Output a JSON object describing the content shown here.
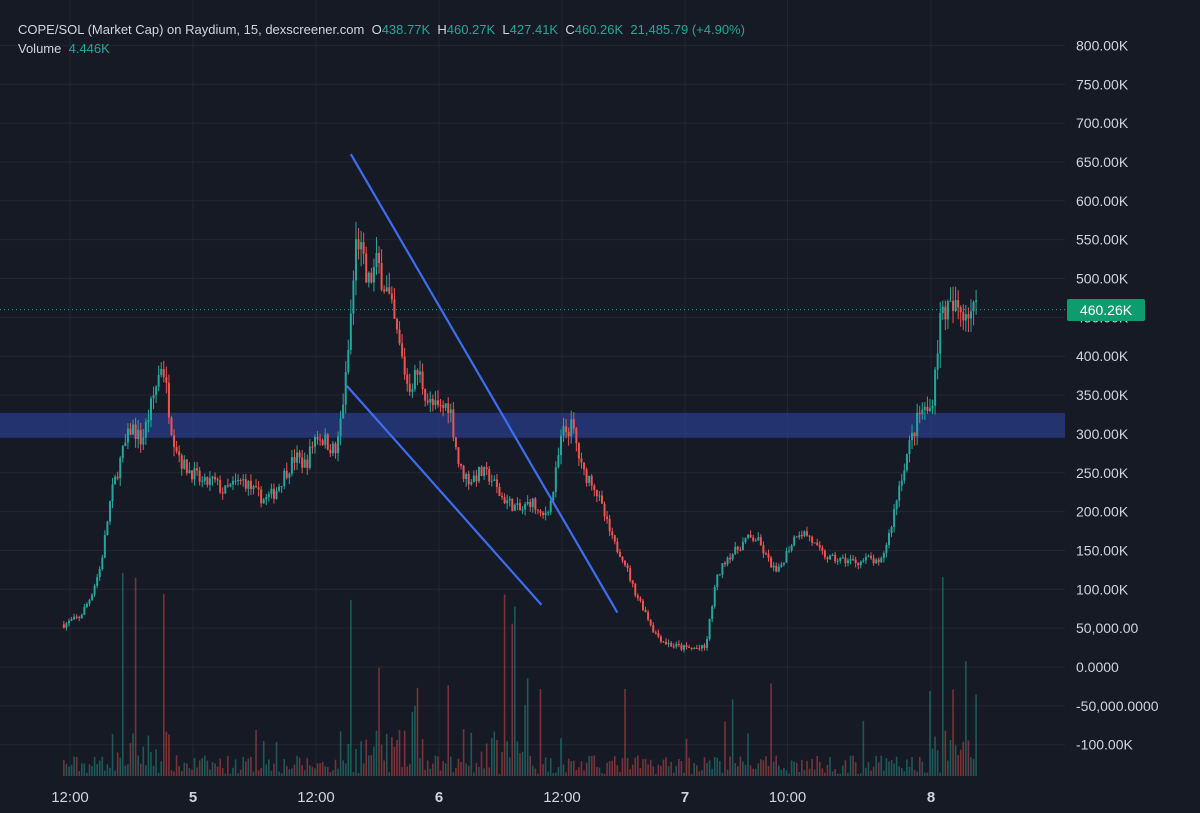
{
  "legend": {
    "title": "COPE/SOL (Market Cap) on Raydium, 15, dexscreener.com",
    "o_label": "O",
    "o_value": "438.77K",
    "h_label": "H",
    "h_value": "460.27K",
    "l_label": "L",
    "l_value": "427.41K",
    "c_label": "C",
    "c_value": "460.26K",
    "change": "21,485.79 (+4.90%)",
    "volume_label": "Volume",
    "volume_value": "4.446K"
  },
  "current_price_label": "460.26K",
  "colors": {
    "up": "#26a69a",
    "down": "#ef5350",
    "trendline": "#3d6df2",
    "zone": "#2a3f8f",
    "tag": "#0e9b6e"
  },
  "chart_data": {
    "type": "candlestick",
    "y_tick_labels": [
      "800.00K",
      "750.00K",
      "700.00K",
      "650.00K",
      "600.00K",
      "550.00K",
      "500.00K",
      "450.00K",
      "400.00K",
      "350.00K",
      "300.00K",
      "250.00K",
      "200.00K",
      "150.00K",
      "100.00K",
      "50,000.00",
      "0.0000",
      "-50,000.0000",
      "-100.00K"
    ],
    "y_ticks": [
      800000,
      750000,
      700000,
      650000,
      600000,
      550000,
      500000,
      450000,
      400000,
      350000,
      300000,
      250000,
      200000,
      150000,
      100000,
      50000,
      0,
      -50000,
      -100000
    ],
    "x_tick_labels": [
      {
        "label": "12:00",
        "bold": false,
        "t": 0
      },
      {
        "label": "5",
        "bold": true,
        "t": 12
      },
      {
        "label": "12:00",
        "bold": false,
        "t": 24
      },
      {
        "label": "6",
        "bold": true,
        "t": 36
      },
      {
        "label": "12:00",
        "bold": false,
        "t": 48
      },
      {
        "label": "7",
        "bold": true,
        "t": 60
      },
      {
        "label": "10:00",
        "bold": false,
        "t": 70
      },
      {
        "label": "8",
        "bold": true,
        "t": 84
      }
    ],
    "key_points": [
      [
        -0.5,
        55000
      ],
      [
        1,
        65000
      ],
      [
        2,
        90000
      ],
      [
        3,
        130000
      ],
      [
        4,
        220000
      ],
      [
        5,
        270000
      ],
      [
        6,
        310000
      ],
      [
        7,
        290000
      ],
      [
        8,
        340000
      ],
      [
        9,
        395000
      ],
      [
        10,
        300000
      ],
      [
        11,
        260000
      ],
      [
        12,
        250000
      ],
      [
        13,
        235000
      ],
      [
        14,
        240000
      ],
      [
        15,
        225000
      ],
      [
        16,
        235000
      ],
      [
        17,
        240000
      ],
      [
        18,
        225000
      ],
      [
        19,
        215000
      ],
      [
        20,
        225000
      ],
      [
        21,
        250000
      ],
      [
        22,
        270000
      ],
      [
        23,
        260000
      ],
      [
        24,
        300000
      ],
      [
        25,
        290000
      ],
      [
        26,
        275000
      ],
      [
        27,
        380000
      ],
      [
        28,
        560000
      ],
      [
        29,
        490000
      ],
      [
        30,
        520000
      ],
      [
        31,
        480000
      ],
      [
        32,
        420000
      ],
      [
        33,
        360000
      ],
      [
        34,
        380000
      ],
      [
        35,
        340000
      ],
      [
        36,
        330000
      ],
      [
        37,
        340000
      ],
      [
        38,
        255000
      ],
      [
        39,
        240000
      ],
      [
        40,
        250000
      ],
      [
        41,
        245000
      ],
      [
        42,
        220000
      ],
      [
        43,
        210000
      ],
      [
        44,
        200000
      ],
      [
        45,
        215000
      ],
      [
        46,
        190000
      ],
      [
        47,
        215000
      ],
      [
        48,
        300000
      ],
      [
        49,
        310000
      ],
      [
        50,
        250000
      ],
      [
        51,
        240000
      ],
      [
        52,
        200000
      ],
      [
        53,
        160000
      ],
      [
        54,
        140000
      ],
      [
        55,
        100000
      ],
      [
        56,
        75000
      ],
      [
        57,
        45000
      ],
      [
        58,
        32000
      ],
      [
        59,
        27000
      ],
      [
        60,
        24000
      ],
      [
        61,
        24000
      ],
      [
        62,
        24000
      ],
      [
        63,
        110000
      ],
      [
        64,
        140000
      ],
      [
        65,
        150000
      ],
      [
        66,
        165000
      ],
      [
        67,
        165000
      ],
      [
        68,
        140000
      ],
      [
        69,
        120000
      ],
      [
        70,
        150000
      ],
      [
        71,
        175000
      ],
      [
        72,
        170000
      ],
      [
        73,
        150000
      ],
      [
        74,
        140000
      ],
      [
        75,
        138000
      ],
      [
        76,
        137000
      ],
      [
        77,
        135000
      ],
      [
        78,
        140000
      ],
      [
        79,
        130000
      ],
      [
        80,
        175000
      ],
      [
        81,
        240000
      ],
      [
        82,
        290000
      ],
      [
        83,
        330000
      ],
      [
        84,
        330000
      ],
      [
        85,
        460000
      ]
    ],
    "resistance_zone": [
      295000,
      327000
    ],
    "trendlines": [
      {
        "from": [
          27.4,
          660000
        ],
        "to": [
          53.4,
          70000
        ]
      },
      {
        "from": [
          27.0,
          362000
        ],
        "to": [
          46.0,
          80000
        ]
      }
    ]
  }
}
